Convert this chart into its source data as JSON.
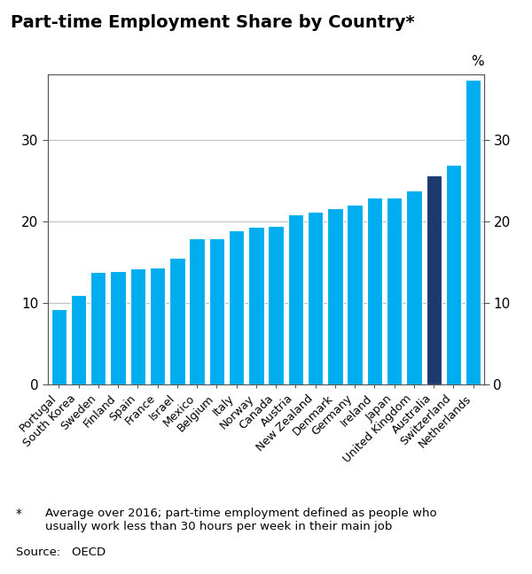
{
  "title": "Part-time Employment Share by Country*",
  "categories": [
    "Portugal",
    "South Korea",
    "Sweden",
    "Finland",
    "Spain",
    "France",
    "Israel",
    "Mexico",
    "Belgium",
    "Italy",
    "Norway",
    "Canada",
    "Austria",
    "New Zealand",
    "Denmark",
    "Germany",
    "Ireland",
    "Japan",
    "United Kingdom",
    "Australia",
    "Switzerland",
    "Netherlands"
  ],
  "values": [
    9.3,
    11.0,
    13.8,
    13.9,
    14.2,
    14.3,
    15.6,
    17.9,
    17.9,
    18.9,
    19.4,
    19.5,
    20.9,
    21.2,
    21.6,
    22.1,
    22.9,
    22.9,
    23.8,
    25.7,
    27.0,
    37.4
  ],
  "bar_colors": [
    "#00AEEF",
    "#00AEEF",
    "#00AEEF",
    "#00AEEF",
    "#00AEEF",
    "#00AEEF",
    "#00AEEF",
    "#00AEEF",
    "#00AEEF",
    "#00AEEF",
    "#00AEEF",
    "#00AEEF",
    "#00AEEF",
    "#00AEEF",
    "#00AEEF",
    "#00AEEF",
    "#00AEEF",
    "#00AEEF",
    "#00AEEF",
    "#1C3A6E",
    "#00AEEF",
    "#00AEEF"
  ],
  "ylabel_symbol": "%",
  "ylim": [
    0,
    38
  ],
  "yticks": [
    0,
    10,
    20,
    30
  ],
  "footnote_star": "*",
  "footnote_text": "Average over 2016; part-time employment defined as people who\nusually work less than 30 hours per week in their main job",
  "source": "Source:   OECD",
  "background_color": "#ffffff",
  "grid_color": "#c0c0c0",
  "spine_color": "#555555"
}
